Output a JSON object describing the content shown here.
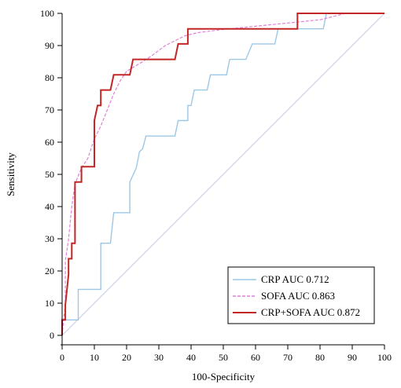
{
  "chart_data": {
    "type": "line",
    "title": "",
    "xlabel": "100-Specificity",
    "ylabel": "Sensitivity",
    "xlim": [
      0,
      100
    ],
    "ylim": [
      0,
      100
    ],
    "xticks": [
      0,
      10,
      20,
      30,
      40,
      50,
      60,
      70,
      80,
      90,
      100
    ],
    "yticks": [
      0,
      10,
      20,
      30,
      40,
      50,
      60,
      70,
      80,
      90,
      100
    ],
    "grid": false,
    "legend_position": "bottom-right",
    "diagonal_reference": true,
    "series": [
      {
        "name": "CRP AUC 0.712",
        "color": "#9cc8e6",
        "dash": "solid",
        "points": [
          [
            0,
            0
          ],
          [
            0,
            4.8
          ],
          [
            5,
            4.8
          ],
          [
            5,
            14.3
          ],
          [
            12,
            14.3
          ],
          [
            12,
            28.6
          ],
          [
            15,
            28.6
          ],
          [
            16,
            38.1
          ],
          [
            21,
            38.1
          ],
          [
            21,
            47.6
          ],
          [
            23,
            52
          ],
          [
            24,
            57
          ],
          [
            25,
            58
          ],
          [
            26,
            61.9
          ],
          [
            35,
            61.9
          ],
          [
            36,
            66.7
          ],
          [
            39,
            66.7
          ],
          [
            39,
            71.4
          ],
          [
            40,
            71.4
          ],
          [
            41,
            76.2
          ],
          [
            45,
            76.2
          ],
          [
            46,
            80.9
          ],
          [
            51,
            80.9
          ],
          [
            52,
            85.7
          ],
          [
            57,
            85.7
          ],
          [
            59,
            90.5
          ],
          [
            66,
            90.5
          ],
          [
            67,
            95.2
          ],
          [
            81,
            95.2
          ],
          [
            82,
            100
          ],
          [
            100,
            100
          ]
        ]
      },
      {
        "name": "SOFA AUC 0.863",
        "color": "#e47fd9",
        "dash": "dashed",
        "points": [
          [
            0,
            0
          ],
          [
            1,
            10
          ],
          [
            1,
            23
          ],
          [
            2,
            30
          ],
          [
            3,
            40
          ],
          [
            4,
            47
          ],
          [
            6,
            52
          ],
          [
            8,
            55
          ],
          [
            10,
            61
          ],
          [
            12,
            65
          ],
          [
            14,
            70
          ],
          [
            16,
            75
          ],
          [
            18,
            79
          ],
          [
            20,
            82
          ],
          [
            25,
            85
          ],
          [
            28,
            87
          ],
          [
            32,
            90
          ],
          [
            38,
            93
          ],
          [
            42,
            94
          ],
          [
            50,
            95
          ],
          [
            60,
            96
          ],
          [
            70,
            97
          ],
          [
            80,
            98
          ],
          [
            88,
            100
          ],
          [
            100,
            100
          ]
        ]
      },
      {
        "name": "CRP+SOFA AUC 0.872",
        "color": "#c22626",
        "dash": "solid",
        "points": [
          [
            0,
            0
          ],
          [
            0,
            4.8
          ],
          [
            1,
            4.8
          ],
          [
            1,
            9.5
          ],
          [
            1.5,
            14.3
          ],
          [
            2,
            19
          ],
          [
            2,
            23.8
          ],
          [
            3,
            23.8
          ],
          [
            3,
            28.6
          ],
          [
            4,
            28.6
          ],
          [
            4,
            38.1
          ],
          [
            4,
            42.9
          ],
          [
            4,
            47.6
          ],
          [
            6,
            47.6
          ],
          [
            6,
            52.4
          ],
          [
            10,
            52.4
          ],
          [
            10,
            66.7
          ],
          [
            11,
            71.4
          ],
          [
            12,
            71.4
          ],
          [
            12,
            76.2
          ],
          [
            14,
            76.2
          ],
          [
            15,
            76.2
          ],
          [
            16,
            80.9
          ],
          [
            21,
            80.9
          ],
          [
            22,
            85.7
          ],
          [
            35,
            85.7
          ],
          [
            36,
            90.5
          ],
          [
            39,
            90.5
          ],
          [
            39,
            95.2
          ],
          [
            73,
            95.2
          ],
          [
            73,
            100
          ],
          [
            100,
            100
          ]
        ]
      }
    ]
  }
}
